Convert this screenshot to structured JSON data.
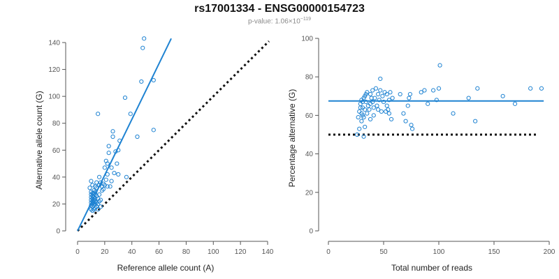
{
  "header": {
    "title": "rs17001334 - ENSG00000154723",
    "pvalue_prefix": "p-value: 1.06×10",
    "pvalue_exponent": "−119"
  },
  "colors": {
    "series": "#1f83d2",
    "reference": "#111111"
  },
  "chart_data": [
    {
      "type": "scatter",
      "id": "left",
      "title": "",
      "xlabel": "Reference allele count (A)",
      "ylabel": "Alternative allele count (G)",
      "xlim": [
        0,
        140
      ],
      "ylim": [
        0,
        140
      ],
      "xticks": [
        0,
        20,
        40,
        60,
        80,
        100,
        120,
        140
      ],
      "yticks": [
        0,
        20,
        40,
        60,
        80,
        100,
        120,
        140
      ],
      "fit_line": {
        "x": [
          0,
          69
        ],
        "y": [
          0,
          143
        ],
        "style": "solid"
      },
      "reference_line": {
        "x": [
          0,
          141
        ],
        "y": [
          0,
          141
        ],
        "style": "dotted"
      },
      "points": [
        [
          10,
          16
        ],
        [
          10,
          19
        ],
        [
          10,
          21
        ],
        [
          10,
          23
        ],
        [
          10,
          25
        ],
        [
          10,
          27
        ],
        [
          11,
          15
        ],
        [
          11,
          18
        ],
        [
          11,
          20
        ],
        [
          11,
          22
        ],
        [
          11,
          24
        ],
        [
          11,
          26
        ],
        [
          11,
          28
        ],
        [
          12,
          16
        ],
        [
          12,
          19
        ],
        [
          12,
          21
        ],
        [
          12,
          23
        ],
        [
          12,
          25
        ],
        [
          12,
          28
        ],
        [
          12,
          30
        ],
        [
          13,
          17
        ],
        [
          13,
          20
        ],
        [
          13,
          22
        ],
        [
          13,
          24
        ],
        [
          13,
          27
        ],
        [
          13,
          29
        ],
        [
          14,
          18
        ],
        [
          14,
          21
        ],
        [
          14,
          26
        ],
        [
          14,
          32
        ],
        [
          15,
          16
        ],
        [
          15,
          20
        ],
        [
          15,
          24
        ],
        [
          15,
          87
        ],
        [
          16,
          22
        ],
        [
          16,
          27
        ],
        [
          16,
          34
        ],
        [
          16,
          40
        ],
        [
          17,
          18
        ],
        [
          17,
          23
        ],
        [
          17,
          36
        ],
        [
          18,
          30
        ],
        [
          18,
          33
        ],
        [
          19,
          31
        ],
        [
          19,
          35
        ],
        [
          20,
          34
        ],
        [
          20,
          47
        ],
        [
          21,
          38
        ],
        [
          21,
          52
        ],
        [
          22,
          33
        ],
        [
          22,
          42
        ],
        [
          22,
          50
        ],
        [
          23,
          58
        ],
        [
          23,
          63
        ],
        [
          24,
          33
        ],
        [
          25,
          37
        ],
        [
          25,
          47
        ],
        [
          26,
          70
        ],
        [
          26,
          74
        ],
        [
          27,
          43
        ],
        [
          28,
          59
        ],
        [
          29,
          50
        ],
        [
          30,
          42
        ],
        [
          30,
          60
        ],
        [
          31,
          67
        ],
        [
          35,
          99
        ],
        [
          36,
          40
        ],
        [
          39,
          87
        ],
        [
          44,
          70
        ],
        [
          47,
          111
        ],
        [
          48,
          136
        ],
        [
          49,
          143
        ],
        [
          56,
          112
        ],
        [
          56,
          75
        ],
        [
          10,
          37
        ],
        [
          11,
          34
        ],
        [
          10,
          29
        ],
        [
          13,
          33
        ],
        [
          14,
          36
        ],
        [
          9,
          32
        ]
      ]
    },
    {
      "type": "scatter",
      "id": "right",
      "title": "",
      "xlabel": "Total number of reads",
      "ylabel": "Percentage alternative (G)",
      "xlim": [
        0,
        200
      ],
      "ylim": [
        0,
        100
      ],
      "xticks": [
        0,
        50,
        100,
        150,
        200
      ],
      "yticks": [
        0,
        20,
        40,
        60,
        80,
        100
      ],
      "fit_line": {
        "x": [
          0,
          195
        ],
        "y": [
          67.5,
          67.5
        ],
        "style": "solid"
      },
      "reference_line": {
        "x": [
          0,
          190
        ],
        "y": [
          50,
          50
        ],
        "style": "dotted"
      },
      "points": [
        [
          26,
          50
        ],
        [
          27,
          59
        ],
        [
          28,
          53
        ],
        [
          28,
          62
        ],
        [
          29,
          64
        ],
        [
          29,
          66
        ],
        [
          30,
          57
        ],
        [
          30,
          61
        ],
        [
          30,
          68
        ],
        [
          31,
          60
        ],
        [
          31,
          64
        ],
        [
          31,
          67
        ],
        [
          32,
          49
        ],
        [
          32,
          59
        ],
        [
          32,
          69
        ],
        [
          33,
          63
        ],
        [
          33,
          54
        ],
        [
          33,
          70
        ],
        [
          34,
          67
        ],
        [
          34,
          71
        ],
        [
          35,
          61
        ],
        [
          35,
          72
        ],
        [
          36,
          65
        ],
        [
          37,
          63
        ],
        [
          38,
          58
        ],
        [
          38,
          66
        ],
        [
          38,
          71
        ],
        [
          39,
          69
        ],
        [
          40,
          67
        ],
        [
          40,
          73
        ],
        [
          41,
          60
        ],
        [
          41,
          64
        ],
        [
          42,
          69
        ],
        [
          43,
          74
        ],
        [
          44,
          65
        ],
        [
          45,
          63
        ],
        [
          45,
          71
        ],
        [
          46,
          68
        ],
        [
          47,
          73
        ],
        [
          47,
          79
        ],
        [
          48,
          62
        ],
        [
          49,
          70
        ],
        [
          50,
          67
        ],
        [
          51,
          72
        ],
        [
          52,
          62
        ],
        [
          53,
          65
        ],
        [
          53,
          71
        ],
        [
          54,
          63
        ],
        [
          55,
          61
        ],
        [
          55,
          68
        ],
        [
          56,
          72
        ],
        [
          57,
          58
        ],
        [
          58,
          69
        ],
        [
          65,
          71
        ],
        [
          68,
          61
        ],
        [
          70,
          57
        ],
        [
          72,
          65
        ],
        [
          73,
          69
        ],
        [
          74,
          71
        ],
        [
          75,
          55
        ],
        [
          76,
          53
        ],
        [
          84,
          72
        ],
        [
          87,
          73
        ],
        [
          90,
          66
        ],
        [
          95,
          73
        ],
        [
          98,
          68
        ],
        [
          100,
          74
        ],
        [
          101,
          86
        ],
        [
          113,
          61
        ],
        [
          127,
          69
        ],
        [
          133,
          57
        ],
        [
          135,
          74
        ],
        [
          158,
          70
        ],
        [
          169,
          66
        ],
        [
          183,
          74
        ],
        [
          193,
          74
        ]
      ]
    }
  ]
}
